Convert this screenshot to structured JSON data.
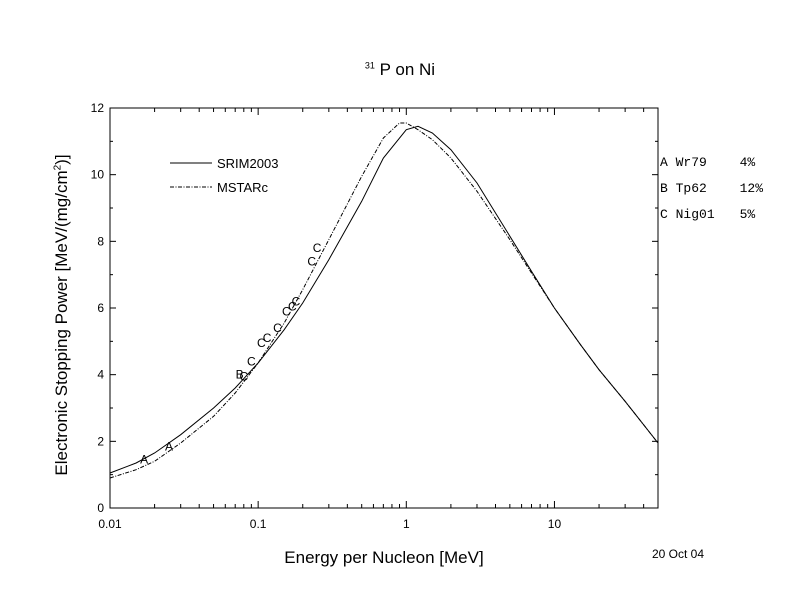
{
  "chart_data": {
    "type": "line",
    "title_superscript": "31",
    "title_text": "P on Ni",
    "xlabel": "Energy per Nucleon [MeV]",
    "ylabel_main": "Electronic Stopping Power [MeV/(mg/cm",
    "ylabel_sup": "2",
    "ylabel_end": ")]",
    "x_scale": "log",
    "xlim": [
      0.01,
      50
    ],
    "ylim": [
      0,
      12
    ],
    "x_ticks": [
      {
        "value": 0.01,
        "label": "0.01"
      },
      {
        "value": 0.1,
        "label": "0.1"
      },
      {
        "value": 1,
        "label": "1"
      },
      {
        "value": 10,
        "label": "10"
      }
    ],
    "y_ticks": [
      {
        "value": 0,
        "label": "0"
      },
      {
        "value": 2,
        "label": "2"
      },
      {
        "value": 4,
        "label": "4"
      },
      {
        "value": 6,
        "label": "6"
      },
      {
        "value": 8,
        "label": "8"
      },
      {
        "value": 10,
        "label": "10"
      },
      {
        "value": 12,
        "label": "12"
      }
    ],
    "legend_position": "top-left",
    "grid": false,
    "series": [
      {
        "name": "SRIM2003",
        "style": "solid",
        "x": [
          0.01,
          0.015,
          0.02,
          0.03,
          0.05,
          0.07,
          0.1,
          0.15,
          0.2,
          0.3,
          0.5,
          0.7,
          1.0,
          1.2,
          1.5,
          2.0,
          3.0,
          5.0,
          7.0,
          10,
          15,
          20,
          30,
          50
        ],
        "y": [
          1.05,
          1.35,
          1.65,
          2.2,
          3.0,
          3.6,
          4.35,
          5.35,
          6.15,
          7.45,
          9.2,
          10.5,
          11.35,
          11.45,
          11.25,
          10.75,
          9.75,
          8.15,
          7.1,
          6.0,
          4.9,
          4.15,
          3.2,
          1.95
        ]
      },
      {
        "name": "MSTARc",
        "style": "dashdot",
        "x": [
          0.01,
          0.015,
          0.02,
          0.03,
          0.05,
          0.07,
          0.1,
          0.15,
          0.2,
          0.3,
          0.5,
          0.7,
          0.9,
          1.0,
          1.2,
          1.5,
          2.0,
          3.0,
          5.0,
          7.0,
          10,
          15,
          20,
          30,
          50
        ],
        "y": [
          0.9,
          1.15,
          1.4,
          1.95,
          2.75,
          3.45,
          4.35,
          5.55,
          6.55,
          8.05,
          9.95,
          11.1,
          11.55,
          11.55,
          11.35,
          11.05,
          10.5,
          9.5,
          8.05,
          7.05,
          6.0,
          4.9,
          4.15,
          3.2,
          1.95
        ]
      }
    ],
    "experimental_points": [
      {
        "label": "A",
        "x": 0.017,
        "y": 1.45
      },
      {
        "label": "A",
        "x": 0.025,
        "y": 1.85
      },
      {
        "label": "B",
        "x": 0.075,
        "y": 4.0
      },
      {
        "label": "C",
        "x": 0.08,
        "y": 3.95
      },
      {
        "label": "C",
        "x": 0.09,
        "y": 4.4
      },
      {
        "label": "C",
        "x": 0.105,
        "y": 4.95
      },
      {
        "label": "C",
        "x": 0.115,
        "y": 5.1
      },
      {
        "label": "C",
        "x": 0.135,
        "y": 5.4
      },
      {
        "label": "C",
        "x": 0.155,
        "y": 5.9
      },
      {
        "label": "C",
        "x": 0.17,
        "y": 6.05
      },
      {
        "label": "C",
        "x": 0.18,
        "y": 6.2
      },
      {
        "label": "C",
        "x": 0.23,
        "y": 7.4
      },
      {
        "label": "C",
        "x": 0.25,
        "y": 7.8
      }
    ]
  },
  "references": [
    {
      "letter": "A",
      "code": "Wr79",
      "error": "4%"
    },
    {
      "letter": "B",
      "code": "Tp62",
      "error": "12%"
    },
    {
      "letter": "C",
      "code": "Nig01",
      "error": "5%"
    }
  ],
  "date_stamp": "20 Oct 04"
}
